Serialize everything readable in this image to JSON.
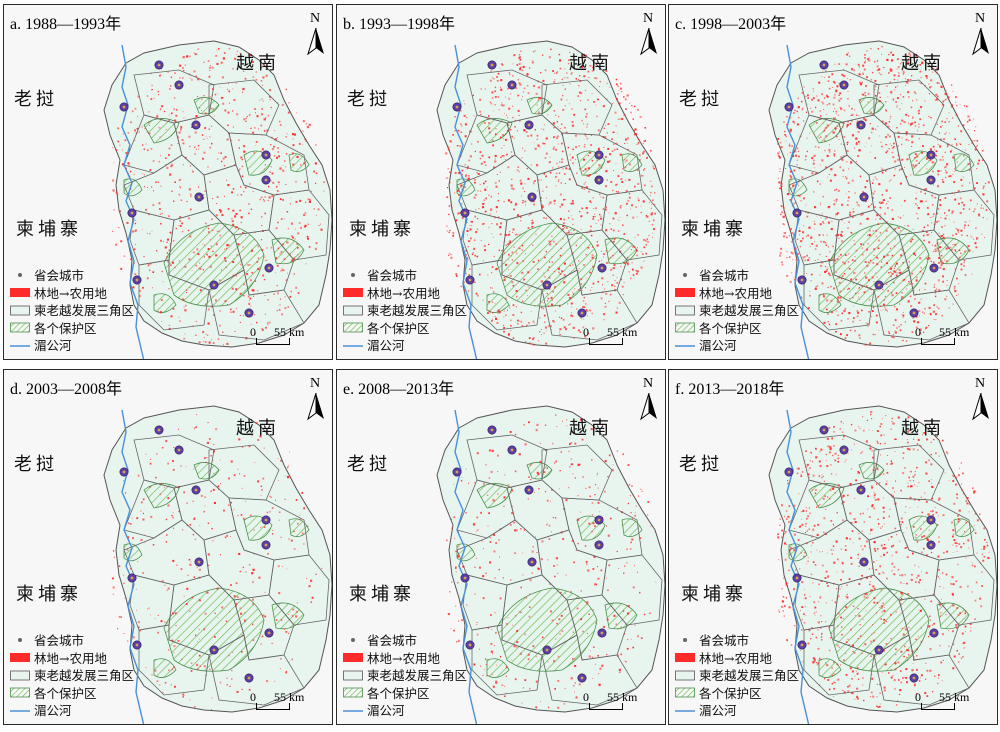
{
  "panels": [
    {
      "id": "a",
      "title": "a. 1988—1993年",
      "density": 0.55
    },
    {
      "id": "b",
      "title": "b. 1993—1998年",
      "density": 0.85
    },
    {
      "id": "c",
      "title": "c. 1998—2003年",
      "density": 1.0
    },
    {
      "id": "d",
      "title": "d. 2003—2008年",
      "density": 0.25
    },
    {
      "id": "e",
      "title": "e. 2008—2013年",
      "density": 0.3
    },
    {
      "id": "f",
      "title": "f. 2013—2018年",
      "density": 0.7
    }
  ],
  "labels": {
    "vietnam": "越南",
    "laos": "老挝",
    "cambodia": "柬埔寨",
    "north": "N"
  },
  "legend": {
    "city": "省会城市",
    "deforest": "林地→农用地",
    "triangle": "柬老越发展三角区",
    "protected": "各个保护区",
    "river": "湄公河"
  },
  "scale": {
    "zero": "0",
    "label": "55 km"
  },
  "colors": {
    "region_fill": "#e8f5ef",
    "province_border": "#666666",
    "deforest": "#ff2a2a",
    "protected": "#6fbf5a",
    "river": "#4a90d9",
    "city_outer": "#5e3fa6",
    "city_inner": "#d4a64c",
    "outside": "#f7f7f7"
  }
}
